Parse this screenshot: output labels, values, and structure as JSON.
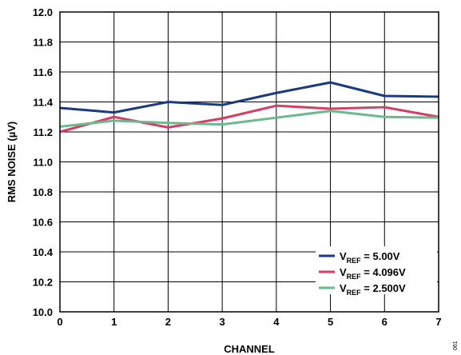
{
  "chart_data": {
    "type": "line",
    "xlabel": "CHANNEL",
    "ylabel": "RMS NOISE (µV)",
    "xlim": [
      0,
      7
    ],
    "ylim": [
      10.0,
      12.0
    ],
    "x_ticks": [
      "0",
      "1",
      "2",
      "3",
      "4",
      "5",
      "6",
      "7"
    ],
    "y_ticks": [
      "10.0",
      "10.2",
      "10.4",
      "10.6",
      "10.8",
      "11.0",
      "11.2",
      "11.4",
      "11.6",
      "11.8",
      "12.0"
    ],
    "grid": true,
    "legend_position": "bottom-right",
    "x": [
      0,
      1,
      2,
      3,
      4,
      5,
      6,
      7
    ],
    "series": [
      {
        "name_main": "V",
        "name_sub": "REF",
        "name_rest": " = 5.00V",
        "color": "#1b3a82",
        "values": [
          11.36,
          11.33,
          11.4,
          11.38,
          11.46,
          11.53,
          11.44,
          11.435
        ]
      },
      {
        "name_main": "V",
        "name_sub": "REF",
        "name_rest": " = 4.096V",
        "color": "#d63c64",
        "values": [
          11.2,
          11.3,
          11.23,
          11.29,
          11.375,
          11.355,
          11.365,
          11.3
        ]
      },
      {
        "name_main": "V",
        "name_sub": "REF",
        "name_rest": " = 2.500V",
        "color": "#6aba8e",
        "values": [
          11.235,
          11.275,
          11.26,
          11.25,
          11.295,
          11.34,
          11.3,
          11.295
        ]
      }
    ]
  },
  "figure_id": "061"
}
